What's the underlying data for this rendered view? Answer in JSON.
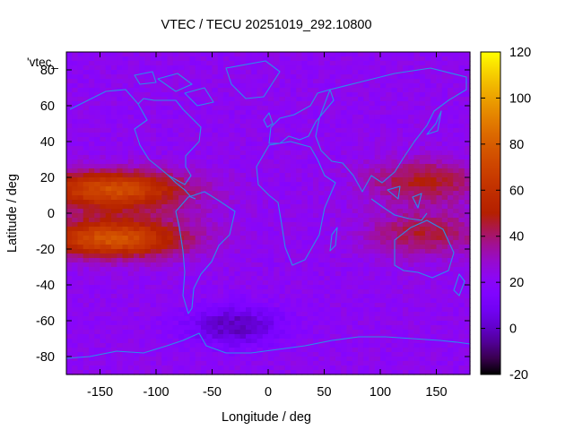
{
  "chart_data": {
    "type": "heatmap",
    "title": "VTEC / TECU 20251019_292.10800",
    "xlabel": "Longitude / deg",
    "ylabel": "Latitude / deg",
    "key_label": "'vtec_",
    "xlim": [
      -180,
      180
    ],
    "ylim": [
      -90,
      90
    ],
    "x_ticks": [
      -150,
      -100,
      -50,
      0,
      50,
      100,
      150
    ],
    "y_ticks": [
      -80,
      -60,
      -40,
      -20,
      0,
      20,
      40,
      60,
      80
    ],
    "colorbar": {
      "min": -20,
      "max": 120,
      "ticks": [
        -20,
        0,
        20,
        40,
        60,
        80,
        100,
        120
      ],
      "palette": "gnuplot (rgbformulae 7,5,15)"
    },
    "grid": {
      "lon_step": 5,
      "lat_step": 2.5,
      "background_tec": 22,
      "features": [
        {
          "name": "pacific-equatorial-anomaly-north",
          "lon": -140,
          "lat": 14,
          "lon_sigma": 45,
          "lat_sigma": 7,
          "peak": 82
        },
        {
          "name": "pacific-equatorial-anomaly-south",
          "lon": -140,
          "lat": -15,
          "lon_sigma": 45,
          "lat_sigma": 7,
          "peak": 86
        },
        {
          "name": "pacific-equatorial-trough",
          "lon": -130,
          "lat": 0,
          "lon_sigma": 50,
          "lat_sigma": 12,
          "peak": 40
        },
        {
          "name": "asia-crest-north",
          "lon": 140,
          "lat": 18,
          "lon_sigma": 35,
          "lat_sigma": 8,
          "peak": 52
        },
        {
          "name": "asia-crest-south",
          "lon": 140,
          "lat": -12,
          "lon_sigma": 35,
          "lat_sigma": 8,
          "peak": 48
        },
        {
          "name": "asia-equatorial-trough",
          "lon": 135,
          "lat": 3,
          "lon_sigma": 40,
          "lat_sigma": 20,
          "peak": 28
        },
        {
          "name": "south-atlantic-depletion",
          "lon": -30,
          "lat": -63,
          "lon_sigma": 30,
          "lat_sigma": 8,
          "peak": -10
        }
      ]
    }
  },
  "colors": {
    "coastline": "#2a8fe8",
    "frame": "#000000"
  }
}
